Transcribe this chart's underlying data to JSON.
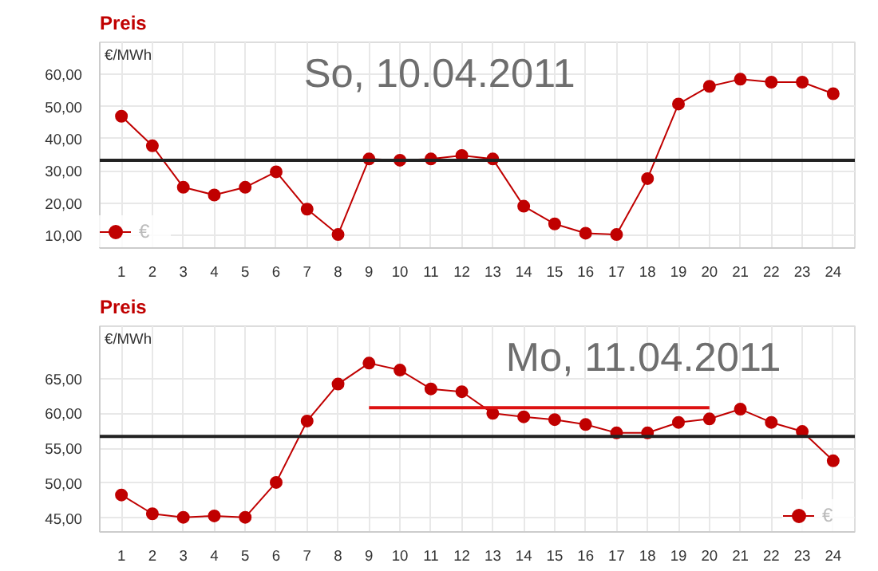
{
  "chart_data": [
    {
      "type": "line",
      "title": "Preis",
      "ylabel": "€/MWh",
      "annotations": [
        "So, 10.04.2011"
      ],
      "x": [
        1,
        2,
        3,
        4,
        5,
        6,
        7,
        8,
        9,
        10,
        11,
        12,
        13,
        14,
        15,
        16,
        17,
        18,
        19,
        20,
        21,
        22,
        23,
        24
      ],
      "xlim": [
        0.3,
        24.7
      ],
      "xticks": [
        1,
        2,
        3,
        4,
        5,
        6,
        7,
        8,
        9,
        10,
        11,
        12,
        13,
        14,
        15,
        16,
        17,
        18,
        19,
        20,
        21,
        22,
        23,
        24
      ],
      "ylim": [
        6,
        70
      ],
      "yticks": [
        {
          "value": 10,
          "label": "10,00"
        },
        {
          "value": 20,
          "label": "20,00"
        },
        {
          "value": 30,
          "label": "30,00"
        },
        {
          "value": 40,
          "label": "40,00"
        },
        {
          "value": 50,
          "label": "50,00"
        },
        {
          "value": 60,
          "label": "60,00"
        }
      ],
      "grid": true,
      "legend": "bottom left",
      "marker": "circle",
      "series": [
        {
          "name": "€",
          "color": "#c00000",
          "values": [
            47,
            37.8,
            24.9,
            22.5,
            24.9,
            29.7,
            18.1,
            10.2,
            33.7,
            33.3,
            33.7,
            34.8,
            33.7,
            19,
            13.5,
            10.6,
            10.2,
            27.6,
            50.8,
            56.3,
            58.5,
            57.6,
            57.6,
            54
          ]
        }
      ],
      "ref_lines": [
        {
          "axis": "y",
          "value": 33.3,
          "color": "#222222"
        }
      ]
    },
    {
      "type": "line",
      "title": "Preis",
      "ylabel": "€/MWh",
      "annotations": [
        "Mo, 11.04.2011"
      ],
      "x": [
        1,
        2,
        3,
        4,
        5,
        6,
        7,
        8,
        9,
        10,
        11,
        12,
        13,
        14,
        15,
        16,
        17,
        18,
        19,
        20,
        21,
        22,
        23,
        24
      ],
      "xlim": [
        0.3,
        24.7
      ],
      "xticks": [
        1,
        2,
        3,
        4,
        5,
        6,
        7,
        8,
        9,
        10,
        11,
        12,
        13,
        14,
        15,
        16,
        17,
        18,
        19,
        20,
        21,
        22,
        23,
        24
      ],
      "ylim": [
        43,
        72.5
      ],
      "yticks": [
        {
          "value": 45,
          "label": "45,00"
        },
        {
          "value": 50,
          "label": "50,00"
        },
        {
          "value": 55,
          "label": "55,00"
        },
        {
          "value": 60,
          "label": "60,00"
        },
        {
          "value": 65,
          "label": "65,00"
        }
      ],
      "grid": true,
      "legend": "bottom right",
      "marker": "circle",
      "series": [
        {
          "name": "€",
          "color": "#c00000",
          "values": [
            48.3,
            45.6,
            45.1,
            45.3,
            45.1,
            50.1,
            58.9,
            64.2,
            67.2,
            66.2,
            63.5,
            63.1,
            60,
            59.5,
            59.1,
            58.4,
            57.2,
            57.2,
            58.7,
            59.2,
            60.6,
            58.7,
            57.4,
            53.2
          ]
        },
        {
          "type": "line",
          "color": "#dd1111",
          "marker": "none",
          "x": [
            9,
            20
          ],
          "values": [
            60.8,
            60.8
          ]
        }
      ],
      "ref_lines": [
        {
          "axis": "y",
          "value": 56.7,
          "color": "#222222"
        }
      ]
    }
  ]
}
